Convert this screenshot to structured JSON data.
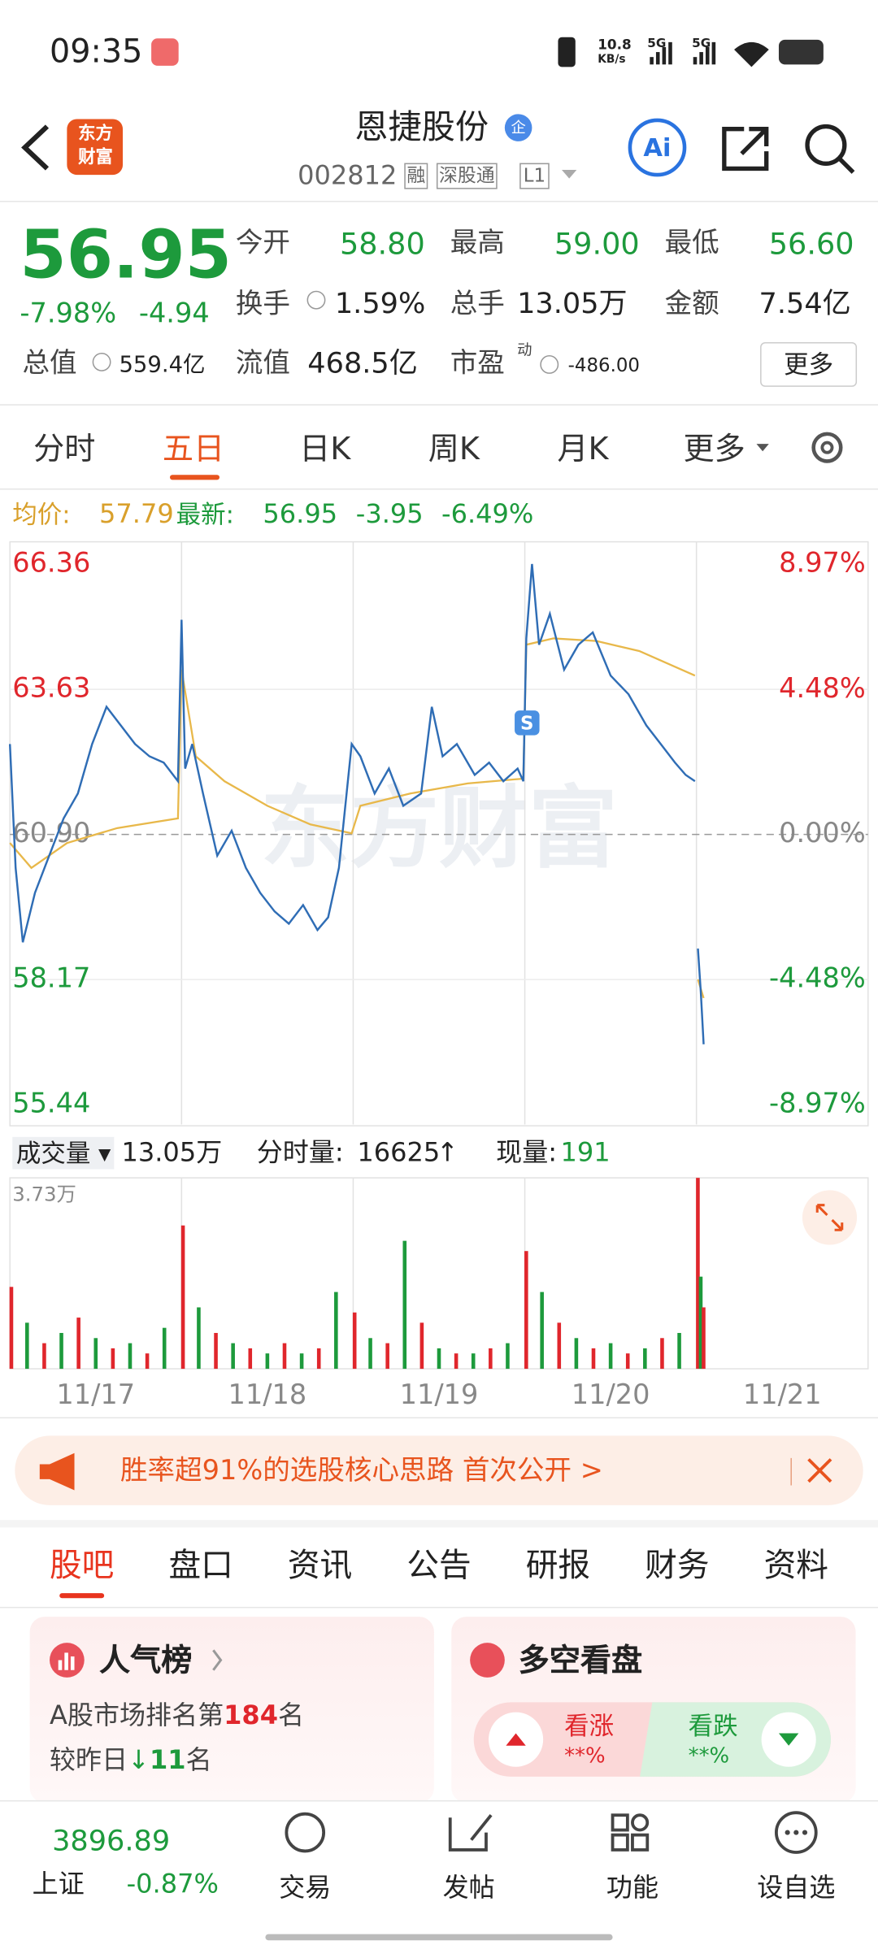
{
  "status": {
    "time": "09:35",
    "speed": "10.8",
    "speed_unit": "KB/s",
    "net1": "5G",
    "net2": "5G"
  },
  "header": {
    "logo_line1": "东方",
    "logo_line2": "财富",
    "title": "恩捷股份",
    "badge": "企",
    "code": "002812",
    "tags": [
      "融",
      "深股通",
      "L1"
    ],
    "ai": "Ai"
  },
  "quote": {
    "price": "56.95",
    "change_pct": "-7.98%",
    "change": "-4.94",
    "fields": [
      {
        "label": "今开",
        "value": "58.80"
      },
      {
        "label": "最高",
        "value": "59.00"
      },
      {
        "label": "最低",
        "value": "56.60"
      },
      {
        "label": "换手",
        "value": "1.59%"
      },
      {
        "label": "总手",
        "value": "13.05万"
      },
      {
        "label": "金额",
        "value": "7.54亿"
      },
      {
        "label": "总值",
        "value": "559.4亿"
      },
      {
        "label": "流值",
        "value": "468.5亿"
      },
      {
        "label": "市盈",
        "sup": "动",
        "value": "-486.00"
      }
    ],
    "more": "更多"
  },
  "tabs": [
    "分时",
    "五日",
    "日K",
    "周K",
    "月K",
    "更多"
  ],
  "chart_info": {
    "avg_label": "均价:",
    "avg": "57.79",
    "latest_label": "最新:",
    "latest": "56.95",
    "change": "-3.95",
    "change_pct": "-6.49%"
  },
  "chart": {
    "type": "line",
    "watermark": "东方财富",
    "ylim": [
      55.44,
      66.36
    ],
    "yticks": [
      66.36,
      63.63,
      {
        "value": 60.9,
        "label": "60.90"
      },
      58.17,
      55.44
    ],
    "y2lim": [
      -8.97,
      8.97
    ],
    "y2ticks": [
      {
        "value": 8.97,
        "label": "8.97%"
      },
      {
        "value": 4.48,
        "label": "4.48%"
      },
      {
        "value": 0,
        "label": "0.00%"
      },
      {
        "value": -4.48,
        "label": "-4.48%"
      },
      {
        "value": -8.97,
        "label": "-8.97%"
      }
    ],
    "xlim": [
      0,
      1200
    ],
    "up_color": "#e0262c",
    "down_color": "#1d9a3c",
    "flat_color": "#888888",
    "price": {
      "color": "#2f6db5",
      "x": [
        0,
        8,
        18,
        35,
        55,
        75,
        95,
        115,
        135,
        155,
        175,
        195,
        215,
        235,
        240,
        245,
        255,
        270,
        290,
        310,
        330,
        350,
        370,
        390,
        410,
        430,
        445,
        460,
        478,
        490,
        510,
        530,
        550,
        575,
        590,
        605,
        625,
        650,
        670,
        690,
        710,
        718,
        722,
        730,
        740,
        755,
        775,
        795,
        815,
        840,
        865,
        890,
        910,
        930,
        945,
        958,
        960,
        962,
        966,
        970
      ],
      "values": [
        62.6,
        60.27,
        58.87,
        59.8,
        60.5,
        61.2,
        61.67,
        62.6,
        63.3,
        62.95,
        62.6,
        62.37,
        62.25,
        61.9,
        64.94,
        62.14,
        62.6,
        61.67,
        60.5,
        60.97,
        60.27,
        59.8,
        59.45,
        59.22,
        59.57,
        59.1,
        59.34,
        60.27,
        62.6,
        62.37,
        61.67,
        62.14,
        61.44,
        61.67,
        63.3,
        62.37,
        62.6,
        62.02,
        62.25,
        61.9,
        62.14,
        61.9,
        64.59,
        65.99,
        64.47,
        65.05,
        64.0,
        64.47,
        64.7,
        63.89,
        63.54,
        62.95,
        62.6,
        62.25,
        62.02,
        61.9,
        null,
        58.75,
        57.94,
        56.95
      ]
    },
    "avg": {
      "color": "#e8b84a",
      "x": [
        0,
        30,
        80,
        150,
        235,
        240,
        260,
        300,
        360,
        420,
        478,
        490,
        560,
        640,
        718,
        722,
        760,
        820,
        880,
        958,
        960,
        962,
        970
      ],
      "values": [
        60.74,
        60.27,
        60.74,
        61.02,
        61.2,
        64.0,
        62.37,
        61.9,
        61.44,
        61.09,
        60.92,
        61.44,
        61.67,
        61.86,
        61.95,
        64.47,
        64.59,
        64.54,
        64.35,
        63.89,
        null,
        58.17,
        57.82
      ]
    }
  },
  "volume": {
    "label": "成交量",
    "total": "13.05万",
    "period_label": "分时量:",
    "period": "16625",
    "arrow": "↑",
    "now_label": "现量:",
    "now": "191",
    "ylim": [
      0,
      3.73
    ],
    "yticks": [
      {
        "value": 3.73,
        "label": "3.73万"
      }
    ],
    "x": [
      2,
      24,
      48,
      72,
      96,
      120,
      144,
      168,
      192,
      216,
      242,
      264,
      288,
      312,
      336,
      360,
      384,
      408,
      432,
      456,
      482,
      504,
      528,
      552,
      576,
      600,
      624,
      648,
      672,
      696,
      722,
      744,
      768,
      792,
      816,
      840,
      864,
      888,
      912,
      936,
      962,
      966,
      970
    ],
    "values": [
      1.6,
      0.9,
      0.5,
      0.7,
      1.0,
      0.6,
      0.4,
      0.5,
      0.3,
      0.8,
      2.8,
      1.2,
      0.7,
      0.5,
      0.4,
      0.3,
      0.5,
      0.3,
      0.4,
      1.5,
      1.1,
      0.6,
      0.5,
      2.5,
      0.9,
      0.4,
      0.3,
      0.3,
      0.4,
      0.5,
      2.3,
      1.5,
      0.9,
      0.6,
      0.4,
      0.5,
      0.3,
      0.4,
      0.6,
      0.7,
      3.73,
      1.8,
      1.2
    ]
  },
  "dates": [
    "11/17",
    "11/18",
    "11/19",
    "11/20",
    "11/21"
  ],
  "banner": {
    "text": "胜率超91%的选股核心思路 首次公开 >"
  },
  "section_tabs": [
    "股吧",
    "盘口",
    "资讯",
    "公告",
    "研报",
    "财务",
    "资料"
  ],
  "cards": {
    "popularity": {
      "title": "人气榜",
      "rank_prefix": "A股市场排名第",
      "rank": "184",
      "rank_suffix": "名",
      "compare_prefix": "较昨日",
      "compare_value": "11",
      "compare_suffix": "名"
    },
    "sentiment": {
      "title": "多空看盘",
      "up": "看涨",
      "up_value": "**%",
      "down": "看跌",
      "down_value": "**%"
    }
  },
  "bottom": {
    "index_value": "3896.89",
    "index_name": "上证",
    "index_change": "-0.87%",
    "nav": [
      "交易",
      "发帖",
      "功能",
      "设自选"
    ]
  }
}
